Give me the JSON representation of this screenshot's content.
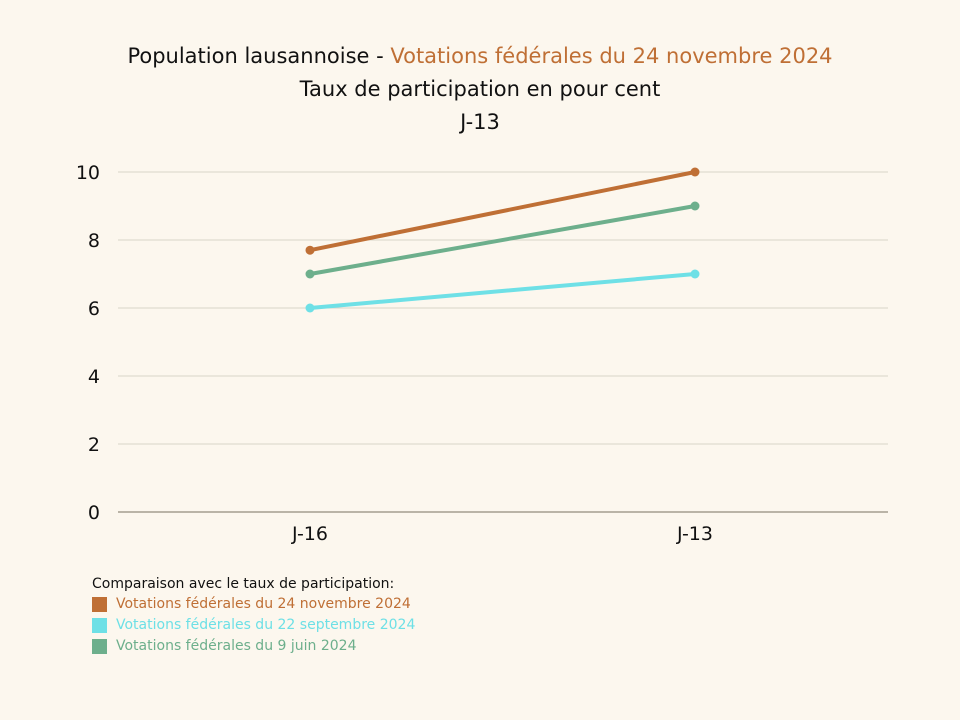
{
  "title": {
    "line1_prefix": "Population lausannoise - ",
    "line1_accent": "Votations fédérales du 24 novembre 2024",
    "line2": "Taux de participation en pour cent",
    "line3": "J-13"
  },
  "colors": {
    "background": "#fcf7ee",
    "accent": "#bf6f35",
    "grid": "#d9d4c8",
    "axis": "#a39d8f"
  },
  "legend": {
    "heading": "Comparaison avec le taux de participation:"
  },
  "chart_data": {
    "type": "line",
    "x": [
      "J-16",
      "J-13"
    ],
    "ylim": [
      0,
      10
    ],
    "yticks": [
      0,
      2,
      4,
      6,
      8,
      10
    ],
    "grid": true,
    "legend_position": "bottom-left",
    "series": [
      {
        "name": "Votations fédérales du 24 novembre 2024",
        "values": [
          7.7,
          10
        ],
        "color": "#bf6f35"
      },
      {
        "name": "Votations fédérales du 22 septembre 2024",
        "values": [
          6,
          7
        ],
        "color": "#6ee0e6"
      },
      {
        "name": "Votations fédérales du 9 juin 2024",
        "values": [
          7,
          9
        ],
        "color": "#6daf8c"
      }
    ]
  }
}
